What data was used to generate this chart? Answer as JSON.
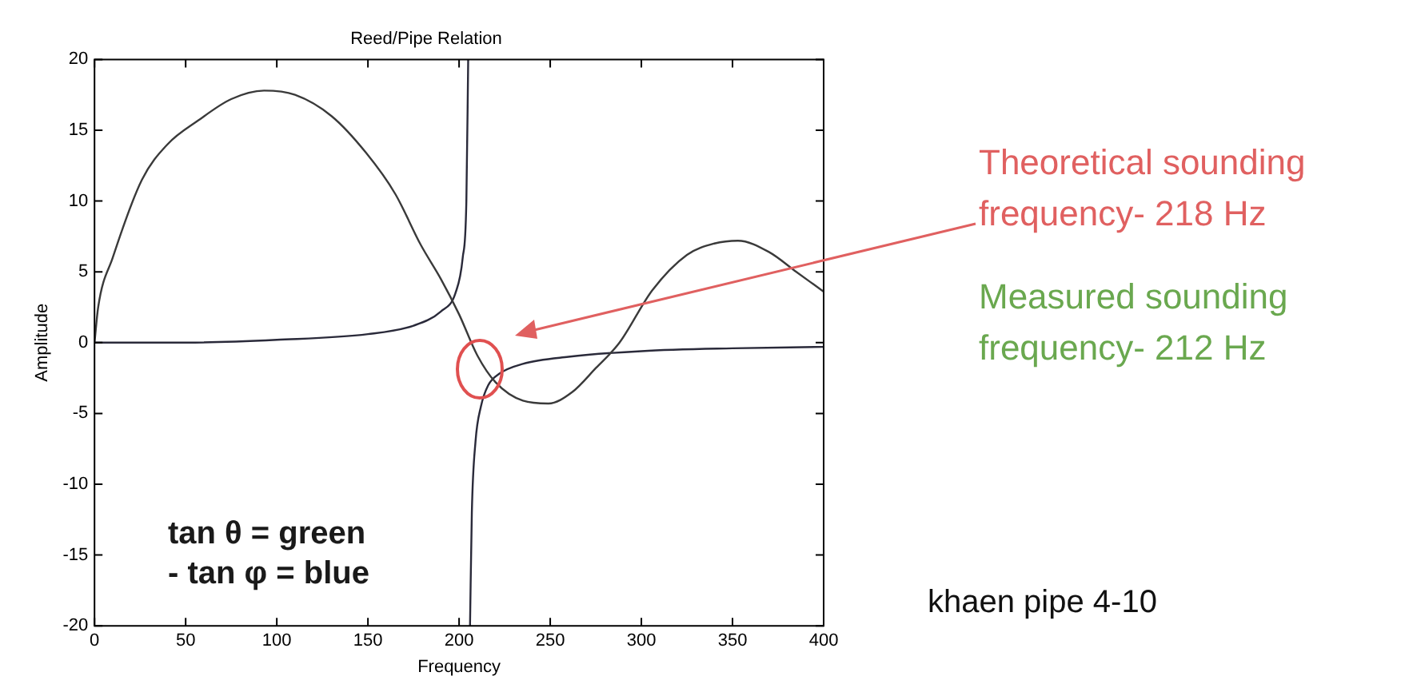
{
  "chart_data": {
    "type": "line",
    "title": "Reed/Pipe Relation",
    "xlabel": "Frequency",
    "ylabel": "Amplitude",
    "xlim": [
      0,
      400
    ],
    "xticks": [
      0,
      50,
      100,
      150,
      200,
      250,
      300,
      350,
      400
    ],
    "ylim": [
      -20,
      20
    ],
    "yticks": [
      -20,
      -15,
      -10,
      -5,
      0,
      5,
      10,
      15,
      20
    ],
    "grid": false,
    "legend": false,
    "marker": "none",
    "line_style": "solid",
    "series": [
      {
        "color": "#3a3a3a",
        "x": [
          0,
          2,
          10,
          26,
          40,
          57,
          75,
          93,
          110,
          130,
          149,
          165,
          179,
          190,
          200,
          210,
          220,
          235,
          249,
          262,
          275,
          288,
          306,
          325,
          340,
          353,
          370,
          385,
          400
        ],
        "values": [
          0,
          2.5,
          6,
          11.5,
          14,
          15.7,
          17.2,
          17.8,
          17.5,
          16,
          13.4,
          10.5,
          6.9,
          4.5,
          2,
          -0.9,
          -2.8,
          -4.1,
          -4.3,
          -3.5,
          -1.8,
          0,
          3.7,
          6.2,
          7,
          7.2,
          6.4,
          5,
          3.6
        ]
      },
      {
        "color": "#2a2a3a",
        "x": [
          0,
          50,
          100,
          150,
          175,
          190,
          198,
          202,
          204,
          205,
          205.5,
          206,
          207,
          209,
          212,
          216,
          222,
          235,
          260,
          300,
          350,
          400
        ],
        "values": [
          0,
          0,
          0.2,
          0.6,
          1.2,
          2.2,
          3.5,
          6,
          10,
          20,
          null,
          -20,
          -12,
          -7,
          -4.5,
          -3,
          -2.2,
          -1.5,
          -1,
          -0.6,
          -0.4,
          -0.3
        ]
      }
    ],
    "annotations": [
      "tan θ = green\n- tan φ = blue",
      "Theoretical sounding\nfrequency- 218 Hz",
      "Measured sounding\nfrequency- 212 Hz",
      "khaen pipe 4-10"
    ]
  }
}
